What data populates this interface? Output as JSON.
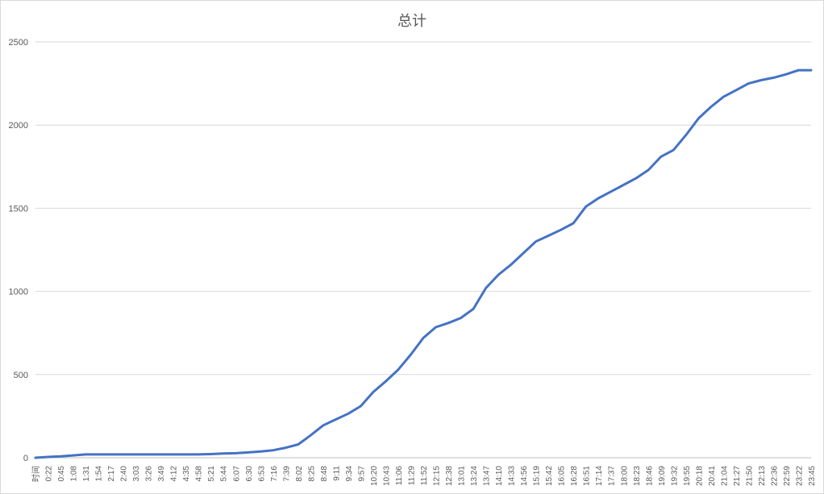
{
  "chart_data": {
    "type": "line",
    "title": "总计",
    "xlabel": "",
    "ylabel": "",
    "ylim": [
      0,
      2500
    ],
    "yticks": [
      0,
      500,
      1000,
      1500,
      2000,
      2500
    ],
    "grid": true,
    "legend": "none",
    "x_tick_labels": [
      "时间",
      "0:22",
      "0:45",
      "1:08",
      "1:31",
      "1:54",
      "2:17",
      "2:40",
      "3:03",
      "3:26",
      "3:49",
      "4:12",
      "4:35",
      "4:58",
      "5:21",
      "5:44",
      "6:07",
      "6:30",
      "6:53",
      "7:16",
      "7:39",
      "8:02",
      "8:25",
      "8:48",
      "9:11",
      "9:34",
      "9:57",
      "10:20",
      "10:43",
      "11:06",
      "11:29",
      "11:52",
      "12:15",
      "12:38",
      "13:01",
      "13:24",
      "13:47",
      "14:10",
      "14:33",
      "14:56",
      "15:19",
      "15:42",
      "16:05",
      "16:28",
      "16:51",
      "17:14",
      "17:37",
      "18:00",
      "18:23",
      "18:46",
      "19:09",
      "19:32",
      "19:55",
      "20:18",
      "20:41",
      "21:04",
      "21:27",
      "21:50",
      "22:13",
      "22:36",
      "22:59",
      "23:22",
      "23:45"
    ],
    "series": [
      {
        "color": "#4472c4",
        "values": [
          0,
          5,
          8,
          14,
          20,
          20,
          20,
          20,
          20,
          20,
          20,
          20,
          20,
          20,
          22,
          25,
          27,
          32,
          38,
          45,
          60,
          80,
          135,
          195,
          230,
          265,
          310,
          395,
          460,
          530,
          620,
          720,
          785,
          810,
          840,
          895,
          1020,
          1100,
          1160,
          1230,
          1300,
          1335,
          1370,
          1410,
          1510,
          1560,
          1600,
          1640,
          1680,
          1730,
          1810,
          1850,
          1940,
          2040,
          2110,
          2170,
          2210,
          2250,
          2270,
          2285,
          2305,
          2330,
          2330
        ]
      }
    ]
  }
}
